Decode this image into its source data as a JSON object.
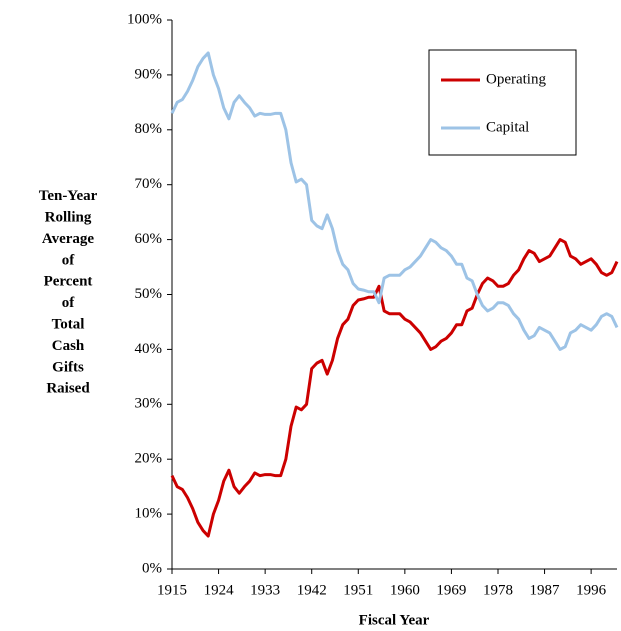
{
  "chart_data": {
    "type": "line",
    "x_label": "Fiscal Year",
    "y_label": [
      "Ten-Year",
      "Rolling",
      "Average",
      "of",
      "Percent",
      "of",
      "Total",
      "Cash",
      "Gifts",
      "Raised"
    ],
    "x": [
      1915,
      1916,
      1917,
      1918,
      1919,
      1920,
      1921,
      1922,
      1923,
      1924,
      1925,
      1926,
      1927,
      1928,
      1929,
      1930,
      1931,
      1932,
      1933,
      1934,
      1935,
      1936,
      1937,
      1938,
      1939,
      1940,
      1941,
      1942,
      1943,
      1944,
      1945,
      1946,
      1947,
      1948,
      1949,
      1950,
      1951,
      1952,
      1953,
      1954,
      1955,
      1956,
      1957,
      1958,
      1959,
      1960,
      1961,
      1962,
      1963,
      1964,
      1965,
      1966,
      1967,
      1968,
      1969,
      1970,
      1971,
      1972,
      1973,
      1974,
      1975,
      1976,
      1977,
      1978,
      1979,
      1980,
      1981,
      1982,
      1983,
      1984,
      1985,
      1986,
      1987,
      1988,
      1989,
      1990,
      1991,
      1992,
      1993,
      1994,
      1995,
      1996,
      1997,
      1998,
      1999,
      2000,
      2001
    ],
    "series": [
      {
        "name": "Operating",
        "color": "#cc0000",
        "values": [
          17,
          15,
          14.5,
          13,
          11,
          8.5,
          7,
          6,
          10,
          12.5,
          16,
          18,
          15,
          13.8,
          15,
          16,
          17.5,
          17,
          17.2,
          17.2,
          17,
          17,
          20,
          26,
          29.5,
          29,
          30,
          36.5,
          37.5,
          38,
          35.5,
          38,
          42,
          44.5,
          45.5,
          48,
          49,
          49.2,
          49.5,
          49.5,
          51.5,
          47,
          46.5,
          46.5,
          46.5,
          45.5,
          45,
          44,
          43,
          41.5,
          40,
          40.5,
          41.5,
          42,
          43,
          44.5,
          44.5,
          47,
          47.5,
          50,
          52,
          53,
          52.5,
          51.5,
          51.5,
          52,
          53.5,
          54.5,
          56.5,
          58,
          57.5,
          56,
          56.5,
          57,
          58.5,
          60,
          59.5,
          57,
          56.5,
          55.5,
          56,
          56.5,
          55.5,
          54,
          53.5,
          54,
          56
        ]
      },
      {
        "name": "Capital",
        "color": "#9dc3e6",
        "values": [
          83,
          85,
          85.5,
          87,
          89,
          91.5,
          93,
          94,
          90,
          87.5,
          84,
          82,
          85,
          86.2,
          85,
          84,
          82.5,
          83,
          82.8,
          82.8,
          83,
          83,
          80,
          74,
          70.5,
          71,
          70,
          63.5,
          62.5,
          62,
          64.5,
          62,
          58,
          55.5,
          54.5,
          52,
          51,
          50.8,
          50.5,
          50.5,
          48.5,
          53,
          53.5,
          53.5,
          53.5,
          54.5,
          55,
          56,
          57,
          58.5,
          60,
          59.5,
          58.5,
          58,
          57,
          55.5,
          55.5,
          53,
          52.5,
          50,
          48,
          47,
          47.5,
          48.5,
          48.5,
          48,
          46.5,
          45.5,
          43.5,
          42,
          42.5,
          44,
          43.5,
          43,
          41.5,
          40,
          40.5,
          43,
          43.5,
          44.5,
          44,
          43.5,
          44.5,
          46,
          46.5,
          46,
          44
        ]
      }
    ],
    "xlim": [
      1915,
      2001
    ],
    "xticks": [
      1915,
      1924,
      1933,
      1942,
      1951,
      1960,
      1969,
      1978,
      1987,
      1996
    ],
    "ylim": [
      0,
      100
    ],
    "yticks": [
      {
        "value": 0,
        "label": "0%"
      },
      {
        "value": 10,
        "label": "10%"
      },
      {
        "value": 20,
        "label": "20%"
      },
      {
        "value": 30,
        "label": "30%"
      },
      {
        "value": 40,
        "label": "40%"
      },
      {
        "value": 50,
        "label": "50%"
      },
      {
        "value": 60,
        "label": "60%"
      },
      {
        "value": 70,
        "label": "70%"
      },
      {
        "value": 80,
        "label": "80%"
      },
      {
        "value": 90,
        "label": "90%"
      },
      {
        "value": 100,
        "label": "100%"
      }
    ],
    "grid": false,
    "legend": "upper right"
  }
}
